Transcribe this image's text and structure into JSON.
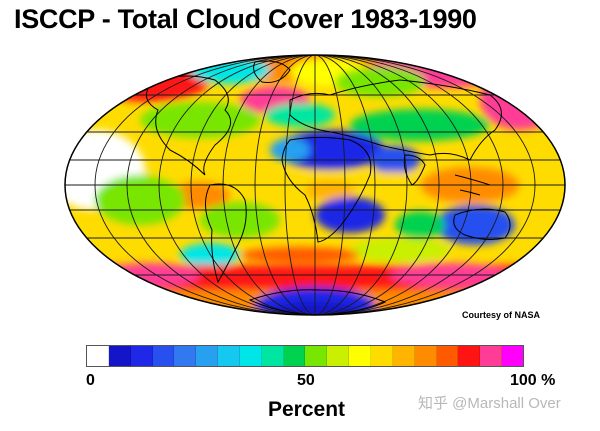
{
  "title": "ISCCP - Total Cloud Cover 1983-1990",
  "credit": "Courtesy of NASA",
  "colorbar": {
    "ticks": [
      "0",
      "50",
      "100 %"
    ],
    "label": "Percent",
    "colors": [
      "#ffffff",
      "#1414c8",
      "#1e28e6",
      "#2850f0",
      "#3278f0",
      "#28a0f0",
      "#14c8f0",
      "#00e6e6",
      "#00e6a0",
      "#00d250",
      "#78e600",
      "#c8f000",
      "#ffff00",
      "#ffdc00",
      "#ffb400",
      "#ff8c00",
      "#ff5a00",
      "#ff1414",
      "#ff3c96",
      "#ff00ff"
    ]
  },
  "watermark": "知乎 @Marshall Over"
}
